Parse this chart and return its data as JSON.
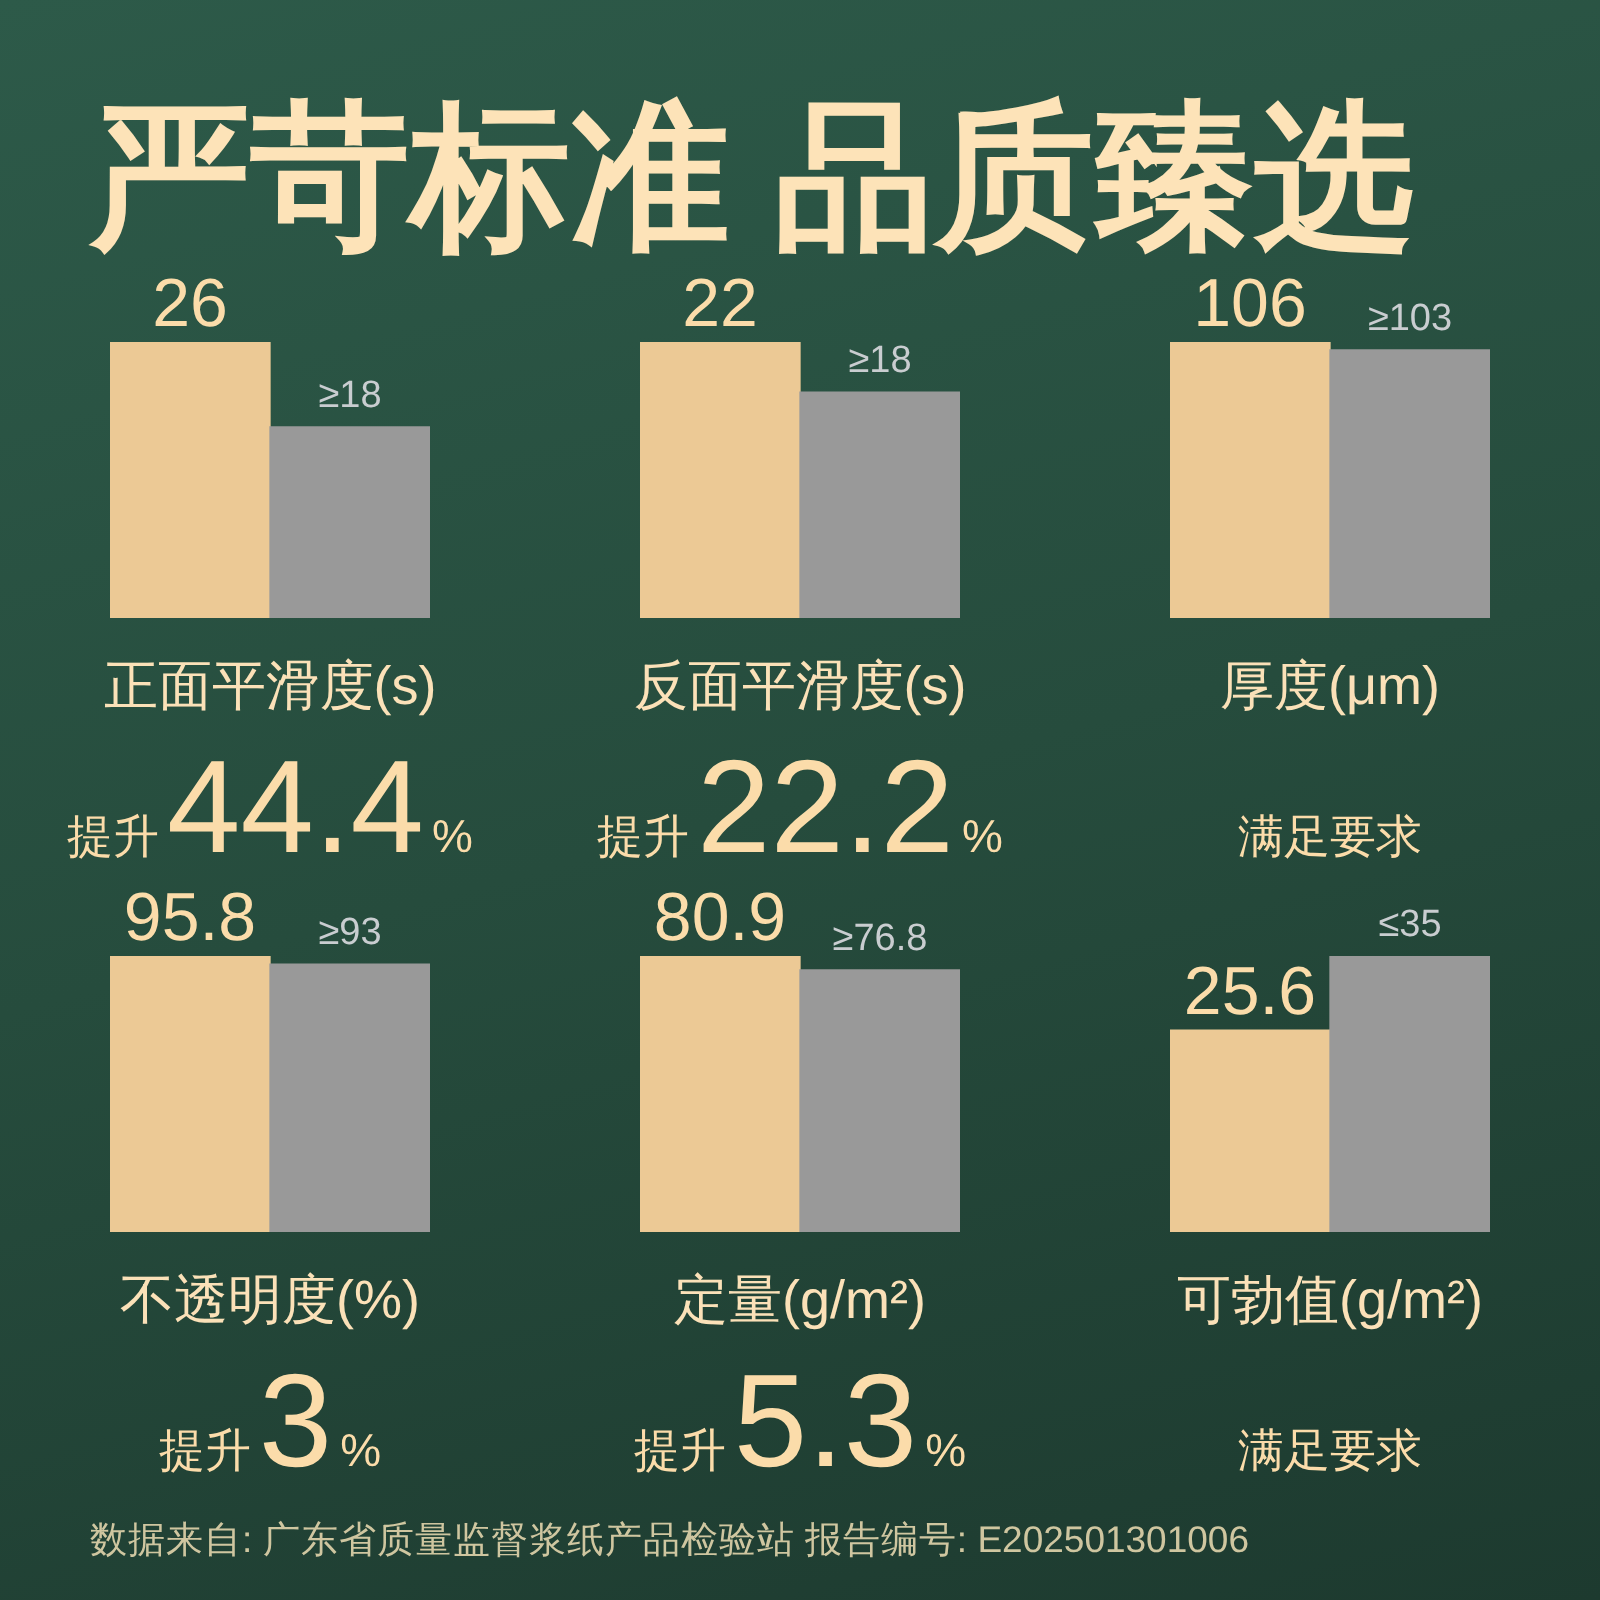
{
  "chart_data": [
    {
      "type": "bar",
      "title": "严苛标准 品质臻选",
      "categories": [
        null,
        null
      ],
      "values": [
        26,
        18
      ],
      "value_labels": [
        "26",
        "≥18"
      ],
      "colors": [
        "#ecc995",
        "#999999"
      ],
      "xlabel": "正面平滑度(s)",
      "annotations": [
        "提升44.4%"
      ],
      "tick_labels": false
    },
    {
      "type": "bar",
      "categories": [
        null,
        null
      ],
      "values": [
        22,
        18
      ],
      "value_labels": [
        "22",
        "≥18"
      ],
      "colors": [
        "#ecc995",
        "#999999"
      ],
      "xlabel": "反面平滑度(s)",
      "annotations": [
        "提升22.2%"
      ],
      "tick_labels": false
    },
    {
      "type": "bar",
      "categories": [
        null,
        null
      ],
      "values": [
        106,
        103
      ],
      "value_labels": [
        "106",
        "≥103"
      ],
      "colors": [
        "#ecc995",
        "#999999"
      ],
      "xlabel": "厚度(μm)",
      "annotations": [
        "满足要求"
      ],
      "tick_labels": false
    },
    {
      "type": "bar",
      "categories": [
        null,
        null
      ],
      "values": [
        95.8,
        93
      ],
      "value_labels": [
        "95.8",
        "≥93"
      ],
      "colors": [
        "#ecc995",
        "#999999"
      ],
      "xlabel": "不透明度(%)",
      "annotations": [
        "提升3%"
      ],
      "tick_labels": false
    },
    {
      "type": "bar",
      "categories": [
        null,
        null
      ],
      "values": [
        80.9,
        76.8
      ],
      "value_labels": [
        "80.9",
        "≥76.8"
      ],
      "colors": [
        "#ecc995",
        "#999999"
      ],
      "xlabel": "定量(g/m²)",
      "annotations": [
        "提升5.3%"
      ],
      "tick_labels": false
    },
    {
      "type": "bar",
      "categories": [
        null,
        null
      ],
      "values": [
        25.6,
        35
      ],
      "value_labels": [
        "25.6",
        "≤35"
      ],
      "colors": [
        "#ecc995",
        "#999999"
      ],
      "xlabel": "可勃值(g/m²)",
      "annotations": [
        "满足要求",
        "数据来自: 广东省质量监督浆纸产品检验站  报告编号: E202501301006"
      ],
      "tick_labels": false
    }
  ]
}
